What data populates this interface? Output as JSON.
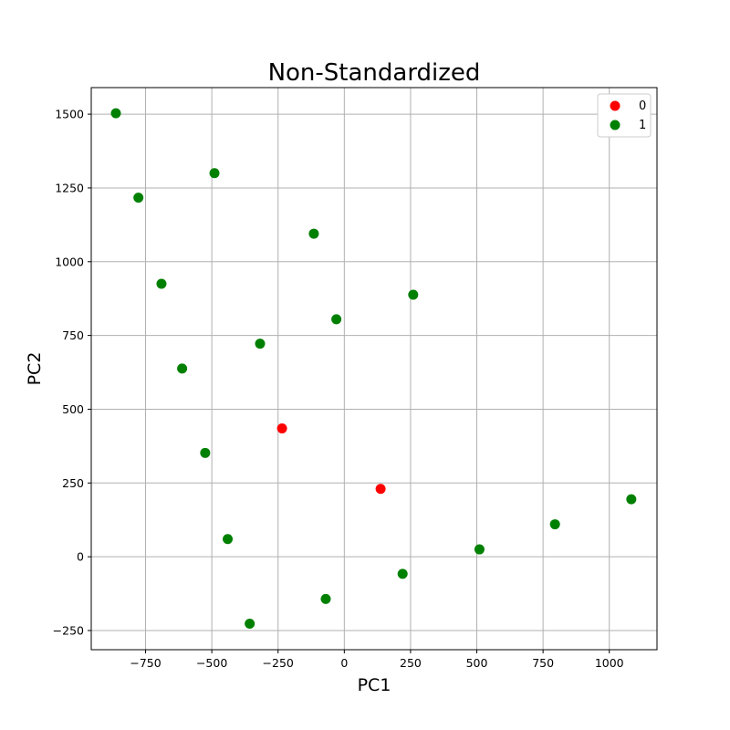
{
  "colors": {
    "class_0": "#ff0000",
    "class_1": "#008000",
    "grid": "#b0b0b0",
    "axes": "#000000"
  },
  "chart_data": {
    "type": "scatter",
    "title": "Non-Standardized",
    "xlabel": "PC1",
    "ylabel": "PC2",
    "xlim": [
      -955,
      1180
    ],
    "ylim": [
      -315,
      1590
    ],
    "xticks": [
      -750,
      -500,
      -250,
      0,
      250,
      500,
      750,
      1000
    ],
    "xtick_labels": [
      "−750",
      "−500",
      "−250",
      "0",
      "250",
      "500",
      "750",
      "1000"
    ],
    "yticks": [
      -250,
      0,
      250,
      500,
      750,
      1000,
      1250,
      1500
    ],
    "ytick_labels": [
      "−250",
      "0",
      "250",
      "500",
      "750",
      "1000",
      "1250",
      "1500"
    ],
    "grid": true,
    "legend_position": "top-right",
    "series": [
      {
        "name": "0",
        "color": "#ff0000",
        "points": [
          {
            "x": -235,
            "y": 435
          },
          {
            "x": 137,
            "y": 230
          }
        ]
      },
      {
        "name": "1",
        "color": "#008000",
        "points": [
          {
            "x": -862,
            "y": 1503
          },
          {
            "x": -777,
            "y": 1217
          },
          {
            "x": -690,
            "y": 925
          },
          {
            "x": -612,
            "y": 638
          },
          {
            "x": -525,
            "y": 352
          },
          {
            "x": -440,
            "y": 60
          },
          {
            "x": -490,
            "y": 1300
          },
          {
            "x": -318,
            "y": 722
          },
          {
            "x": -357,
            "y": -227
          },
          {
            "x": -115,
            "y": 1095
          },
          {
            "x": -30,
            "y": 805
          },
          {
            "x": -70,
            "y": -143
          },
          {
            "x": 260,
            "y": 888
          },
          {
            "x": 220,
            "y": -58
          },
          {
            "x": 510,
            "y": 25
          },
          {
            "x": 795,
            "y": 110
          },
          {
            "x": 1083,
            "y": 195
          }
        ]
      }
    ]
  }
}
